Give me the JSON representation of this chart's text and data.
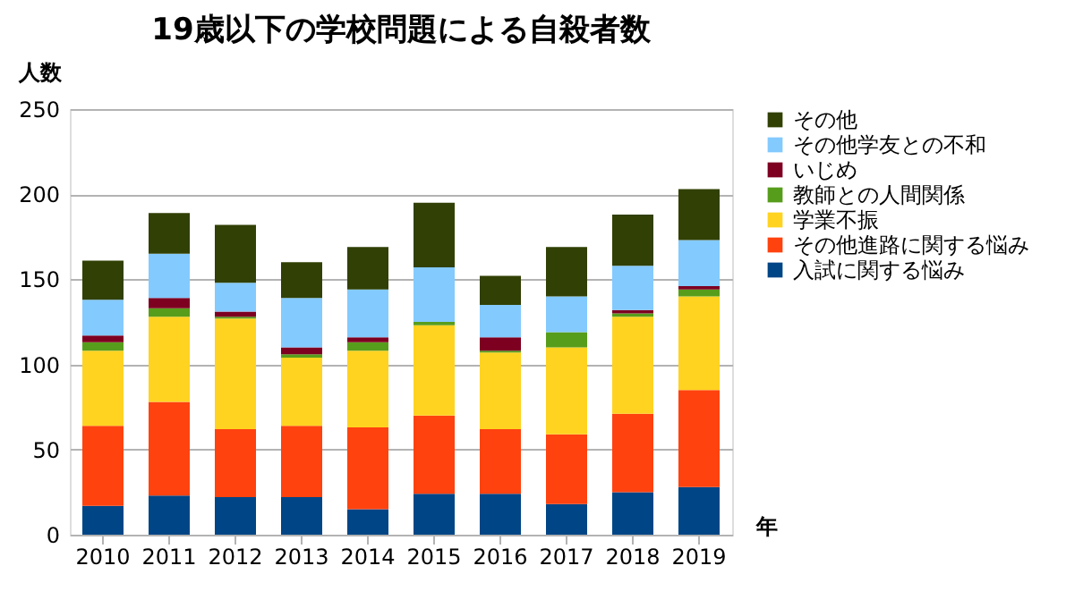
{
  "chart_data": {
    "type": "bar",
    "stacked": true,
    "title": "19歳以下の学校問題による自殺者数",
    "ylabel": "人数",
    "xlabel": "年",
    "categories": [
      "2010",
      "2011",
      "2012",
      "2013",
      "2014",
      "2015",
      "2016",
      "2017",
      "2018",
      "2019"
    ],
    "series": [
      {
        "name": "入試に関する悩み",
        "color": "#004586",
        "values": [
          17,
          23,
          22,
          22,
          15,
          24,
          24,
          18,
          25,
          28
        ]
      },
      {
        "name": "その他進路に関する悩み",
        "color": "#ff420e",
        "values": [
          47,
          55,
          40,
          42,
          48,
          46,
          38,
          41,
          46,
          57
        ]
      },
      {
        "name": "学業不振",
        "color": "#ffd320",
        "values": [
          44,
          50,
          65,
          40,
          45,
          53,
          45,
          51,
          57,
          55
        ]
      },
      {
        "name": "教師との人間関係",
        "color": "#579d1c",
        "values": [
          5,
          5,
          1,
          2,
          5,
          2,
          1,
          9,
          2,
          4
        ]
      },
      {
        "name": "いじめ",
        "color": "#7e0021",
        "values": [
          4,
          6,
          3,
          4,
          3,
          0,
          8,
          0,
          2,
          2
        ]
      },
      {
        "name": "その他学友との不和",
        "color": "#83caff",
        "values": [
          21,
          26,
          17,
          29,
          28,
          32,
          19,
          21,
          26,
          27
        ]
      },
      {
        "name": "その他",
        "color": "#314004",
        "values": [
          23,
          24,
          34,
          21,
          25,
          38,
          17,
          29,
          30,
          30
        ]
      }
    ],
    "ylim": [
      0,
      250
    ],
    "yticks": [
      0,
      50,
      100,
      150,
      200,
      250
    ],
    "grid": "y",
    "legend": "right"
  }
}
